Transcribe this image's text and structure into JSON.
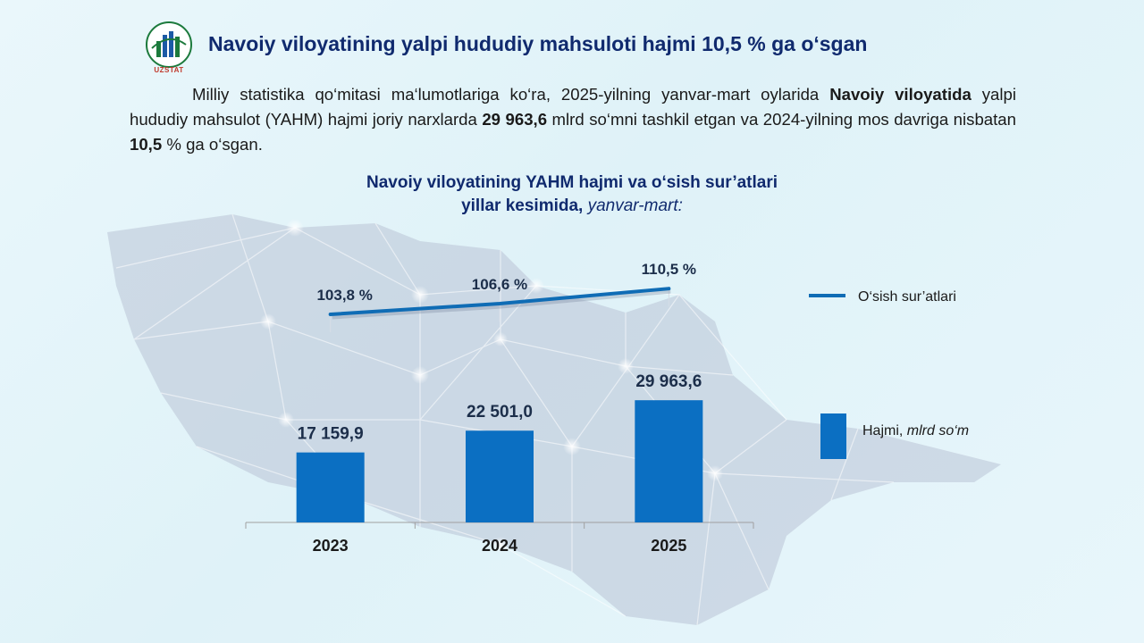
{
  "header": {
    "logo_text": "UZSTAT",
    "title": "Navoiy viloyatining yalpi hududiy mahsuloti hajmi 10,5 % ga o‘sgan"
  },
  "intro": {
    "p1": "Milliy statistika qo‘mitasi ma‘lumotlariga ko‘ra, 2025-yilning yanvar-mart oylarida ",
    "b1": "Navoiy viloyatida",
    "p2": " yalpi hududiy mahsulot (YAHM) hajmi joriy narxlarda ",
    "b2": "29 963,6",
    "p3": " mlrd so‘mni tashkil etgan va 2024-yilning mos davriga nisbatan ",
    "b3": "10,5",
    "p4": " % ga o‘sgan."
  },
  "chart_title": {
    "line1": "Navoiy viloyatining YAHM hajmi va o‘sish sur’atlari",
    "line2": "yillar kesimida, ",
    "line2_italic": "yanvar-mart:"
  },
  "colors": {
    "bar": "#0b6fc2",
    "line": "#0f6cb5",
    "title": "#102a6e"
  },
  "chart_data": {
    "type": "bar",
    "categories": [
      "2023",
      "2024",
      "2025"
    ],
    "series": [
      {
        "name": "Hajmi, mlrd so‘m",
        "type": "bar",
        "values": [
          17159.9,
          22501.0,
          29963.6
        ],
        "labels": [
          "17 159,9",
          "22 501,0",
          "29 963,6"
        ]
      },
      {
        "name": "O‘sish sur’atlari",
        "type": "line",
        "values": [
          103.8,
          106.6,
          110.5
        ],
        "labels": [
          "103,8 %",
          "106,6 %",
          "110,5 %"
        ]
      }
    ],
    "legend": {
      "line_label": "O‘sish sur’atlari",
      "bar_label": "Hajmi, ",
      "bar_label_italic": "mlrd so‘m",
      "position": "right"
    }
  }
}
